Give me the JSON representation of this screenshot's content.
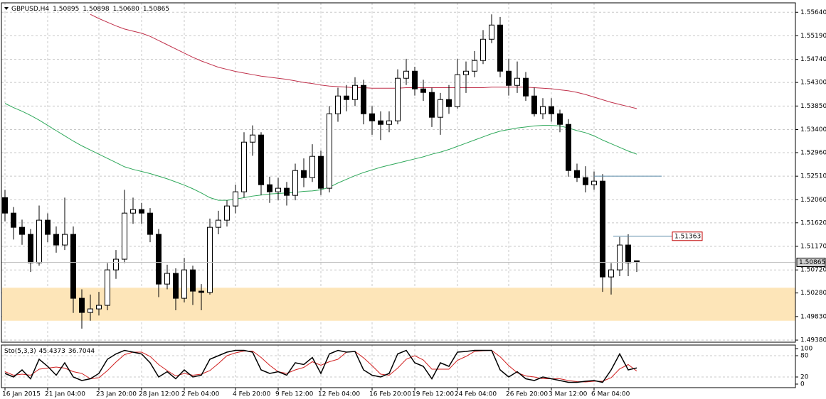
{
  "chart_data": {
    "type": "candlestick",
    "symbol": "GBPUSD,H4",
    "ohlc_labels": [
      "1.50895",
      "1.50898",
      "1.50680",
      "1.50865"
    ],
    "bull_color": "#ffffff",
    "bear_color": "#000000",
    "wick_color": "#000000",
    "grid": true,
    "ylim": [
      1.4934,
      1.5582
    ],
    "yticks": [
      {
        "value": 1.5564,
        "label": "1.55640"
      },
      {
        "value": 1.5519,
        "label": "1.55190"
      },
      {
        "value": 1.5474,
        "label": "1.54740"
      },
      {
        "value": 1.543,
        "label": "1.54300"
      },
      {
        "value": 1.5385,
        "label": "1.53850"
      },
      {
        "value": 1.534,
        "label": "1.53400"
      },
      {
        "value": 1.5296,
        "label": "1.52960"
      },
      {
        "value": 1.5251,
        "label": "1.52510"
      },
      {
        "value": 1.5206,
        "label": "1.52060"
      },
      {
        "value": 1.5162,
        "label": "1.51620"
      },
      {
        "value": 1.5117,
        "label": "1.51170"
      },
      {
        "value": 1.5072,
        "label": "1.50720"
      },
      {
        "value": 1.5028,
        "label": "1.50280"
      },
      {
        "value": 1.4983,
        "label": "1.49830"
      },
      {
        "value": 1.4938,
        "label": "1.49380"
      }
    ],
    "categories": [
      "16 Jan 2015",
      null,
      null,
      null,
      null,
      "21 Jan 04:00",
      null,
      null,
      null,
      null,
      null,
      "23 Jan 20:00",
      null,
      null,
      null,
      null,
      "28 Jan 12:00",
      null,
      null,
      null,
      null,
      "2 Feb 04:00",
      null,
      null,
      null,
      null,
      null,
      "4 Feb 20:00",
      null,
      null,
      null,
      null,
      "9 Feb 12:00",
      null,
      null,
      null,
      null,
      "12 Feb 04:00",
      null,
      null,
      null,
      null,
      null,
      "16 Feb 20:00",
      null,
      null,
      null,
      null,
      "19 Feb 12:00",
      null,
      null,
      null,
      null,
      "24 Feb 04:00",
      null,
      null,
      null,
      null,
      null,
      "26 Feb 20:00",
      null,
      null,
      null,
      null,
      "3 Mar 12:00",
      null,
      null,
      null,
      null,
      "6 Mar 04:00",
      null,
      null,
      null,
      null,
      null
    ],
    "candles": [
      [
        1.521,
        1.5225,
        1.5165,
        1.51805
      ],
      [
        1.51805,
        1.5192,
        1.513,
        1.51534
      ],
      [
        1.51534,
        1.5168,
        1.512,
        1.51399
      ],
      [
        1.51399,
        1.515,
        1.5068,
        1.50857
      ],
      [
        1.50857,
        1.5195,
        1.508,
        1.5167
      ],
      [
        1.5167,
        1.518,
        1.5125,
        1.51399
      ],
      [
        1.51399,
        1.5155,
        1.5105,
        1.51196
      ],
      [
        1.51196,
        1.521,
        1.511,
        1.51399
      ],
      [
        1.51399,
        1.5155,
        1.499,
        1.50179
      ],
      [
        1.50179,
        1.5035,
        1.496,
        1.49908
      ],
      [
        1.49908,
        1.5025,
        1.4975,
        1.49976
      ],
      [
        1.49976,
        1.503,
        1.4985,
        1.50044
      ],
      [
        1.50044,
        1.5085,
        1.4995,
        1.50721
      ],
      [
        1.50721,
        1.511,
        1.5055,
        1.50925
      ],
      [
        1.50925,
        1.5225,
        1.5085,
        1.51805
      ],
      [
        1.51805,
        1.521,
        1.516,
        1.51873
      ],
      [
        1.51873,
        1.52,
        1.516,
        1.51805
      ],
      [
        1.51805,
        1.519,
        1.5125,
        1.51399
      ],
      [
        1.51399,
        1.515,
        1.502,
        1.5045
      ],
      [
        1.5045,
        1.5082,
        1.5035,
        1.50654
      ],
      [
        1.50654,
        1.5075,
        1.4995,
        1.50179
      ],
      [
        1.50179,
        1.5095,
        1.501,
        1.50721
      ],
      [
        1.50721,
        1.508,
        1.5005,
        1.50315
      ],
      [
        1.50315,
        1.5045,
        1.4995,
        1.5029
      ],
      [
        1.5029,
        1.517,
        1.5025,
        1.51534
      ],
      [
        1.51534,
        1.5185,
        1.514,
        1.5167
      ],
      [
        1.5167,
        1.5205,
        1.5155,
        1.51941
      ],
      [
        1.51941,
        1.5235,
        1.518,
        1.52212
      ],
      [
        1.52212,
        1.5335,
        1.521,
        1.5316
      ],
      [
        1.5316,
        1.5348,
        1.529,
        1.53296
      ],
      [
        1.53296,
        1.5335,
        1.5215,
        1.52347
      ],
      [
        1.52347,
        1.525,
        1.52,
        1.52212
      ],
      [
        1.52212,
        1.5248,
        1.5205,
        1.5228
      ],
      [
        1.5228,
        1.524,
        1.5195,
        1.52144
      ],
      [
        1.52144,
        1.5275,
        1.5205,
        1.52618
      ],
      [
        1.52618,
        1.5285,
        1.523,
        1.52483
      ],
      [
        1.52483,
        1.5312,
        1.524,
        1.52889
      ],
      [
        1.52889,
        1.53,
        1.5215,
        1.5228
      ],
      [
        1.5228,
        1.5385,
        1.522,
        1.53702
      ],
      [
        1.53702,
        1.542,
        1.5355,
        1.54041
      ],
      [
        1.54041,
        1.5425,
        1.5375,
        1.53973
      ],
      [
        1.53973,
        1.544,
        1.5385,
        1.54244
      ],
      [
        1.54244,
        1.5435,
        1.535,
        1.53702
      ],
      [
        1.53702,
        1.5385,
        1.533,
        1.53567
      ],
      [
        1.53567,
        1.5375,
        1.532,
        1.53499
      ],
      [
        1.53499,
        1.5375,
        1.5335,
        1.53567
      ],
      [
        1.53567,
        1.5455,
        1.535,
        1.5438
      ],
      [
        1.5438,
        1.5475,
        1.5425,
        1.54515
      ],
      [
        1.54515,
        1.546,
        1.5405,
        1.54177
      ],
      [
        1.54177,
        1.5435,
        1.5395,
        1.54109
      ],
      [
        1.54109,
        1.542,
        1.5345,
        1.53635
      ],
      [
        1.53635,
        1.541,
        1.533,
        1.53973
      ],
      [
        1.53973,
        1.5425,
        1.537,
        1.53838
      ],
      [
        1.53838,
        1.5475,
        1.538,
        1.54448
      ],
      [
        1.54448,
        1.547,
        1.541,
        1.54515
      ],
      [
        1.54515,
        1.549,
        1.544,
        1.54719
      ],
      [
        1.54719,
        1.553,
        1.5465,
        1.55125
      ],
      [
        1.55125,
        1.556,
        1.5505,
        1.55396
      ],
      [
        1.55396,
        1.5555,
        1.544,
        1.54515
      ],
      [
        1.54515,
        1.5475,
        1.5405,
        1.54244
      ],
      [
        1.54244,
        1.547,
        1.541,
        1.5438
      ],
      [
        1.5438,
        1.545,
        1.5395,
        1.54041
      ],
      [
        1.54041,
        1.542,
        1.5365,
        1.53702
      ],
      [
        1.53702,
        1.54,
        1.536,
        1.53838
      ],
      [
        1.53838,
        1.54,
        1.5355,
        1.53702
      ],
      [
        1.53702,
        1.5378,
        1.5335,
        1.53499
      ],
      [
        1.53499,
        1.536,
        1.525,
        1.52618
      ],
      [
        1.52618,
        1.5275,
        1.524,
        1.52483
      ],
      [
        1.52483,
        1.527,
        1.522,
        1.52347
      ],
      [
        1.52347,
        1.526,
        1.5225,
        1.52415
      ],
      [
        1.52415,
        1.5255,
        1.503,
        1.50586
      ],
      [
        1.50586,
        1.5085,
        1.5025,
        1.50721
      ],
      [
        1.50721,
        1.5135,
        1.506,
        1.51196
      ],
      [
        1.51196,
        1.514,
        1.506,
        1.50857
      ],
      [
        1.50895,
        1.50898,
        1.5068,
        1.50865
      ]
    ],
    "moving_averages": [
      {
        "color": "#c0304a",
        "values": [
          null,
          null,
          null,
          null,
          null,
          null,
          null,
          null,
          null,
          null,
          1.556,
          1.5552,
          1.5545,
          1.5538,
          1.5532,
          1.5528,
          1.5524,
          1.5518,
          1.551,
          1.5502,
          1.5494,
          1.5486,
          1.5478,
          1.5471,
          1.5465,
          1.5459,
          1.5455,
          1.5451,
          1.5448,
          1.5445,
          1.5442,
          1.544,
          1.5438,
          1.5436,
          1.5433,
          1.543,
          1.5428,
          1.5425,
          1.5423,
          1.5422,
          1.5421,
          1.542,
          1.542,
          1.5419,
          1.5419,
          1.5419,
          1.5419,
          1.542,
          1.542,
          1.542,
          1.542,
          1.542,
          1.542,
          1.542,
          1.542,
          1.542,
          1.542,
          1.5421,
          1.5421,
          1.5421,
          1.5421,
          1.5421,
          1.542,
          1.5419,
          1.5418,
          1.5416,
          1.5414,
          1.5411,
          1.5407,
          1.5402,
          1.5397,
          1.5392,
          1.5388,
          1.5384,
          1.538
        ]
      },
      {
        "color": "#2ea85a",
        "values": [
          1.539,
          1.5382,
          1.5375,
          1.5367,
          1.5358,
          1.5348,
          1.5338,
          1.5328,
          1.5318,
          1.5309,
          1.5301,
          1.5293,
          1.5285,
          1.5277,
          1.5269,
          1.5264,
          1.526,
          1.5256,
          1.5251,
          1.5246,
          1.524,
          1.5234,
          1.5227,
          1.5219,
          1.521,
          1.5205,
          1.5205,
          1.5207,
          1.521,
          1.5213,
          1.5215,
          1.5217,
          1.5218,
          1.5219,
          1.522,
          1.5222,
          1.5223,
          1.5225,
          1.523,
          1.5238,
          1.5245,
          1.5252,
          1.5258,
          1.5263,
          1.5268,
          1.5272,
          1.5276,
          1.528,
          1.5284,
          1.5288,
          1.5293,
          1.5297,
          1.5302,
          1.5308,
          1.5314,
          1.532,
          1.5326,
          1.5332,
          1.5337,
          1.534,
          1.5343,
          1.5345,
          1.5347,
          1.5348,
          1.5348,
          1.5347,
          1.5343,
          1.5338,
          1.5334,
          1.5328,
          1.532,
          1.5313,
          1.5306,
          1.5299,
          1.5293
        ]
      }
    ],
    "zone": {
      "top": 1.5038,
      "bottom": 1.4975,
      "color": "#fde5b8"
    },
    "levels": [
      {
        "value": 1.51363,
        "label": "1.51363",
        "color": "#c00000"
      },
      {
        "value": 1.5251,
        "color": "#5a8aa8"
      }
    ],
    "stochastic": {
      "label": "Sto(5,3,3)",
      "ylim": [
        0,
        100
      ],
      "yticks": [
        100,
        80,
        20,
        0
      ],
      "main": {
        "color": "#000000",
        "values": [
          30,
          20,
          40,
          15,
          70,
          50,
          25,
          60,
          20,
          10,
          15,
          30,
          70,
          85,
          95,
          90,
          85,
          60,
          20,
          35,
          15,
          40,
          20,
          25,
          70,
          80,
          90,
          95,
          95,
          90,
          40,
          30,
          35,
          25,
          60,
          55,
          75,
          30,
          85,
          95,
          90,
          92,
          40,
          25,
          20,
          30,
          85,
          95,
          60,
          50,
          15,
          60,
          50,
          90,
          92,
          95,
          95,
          95,
          40,
          20,
          35,
          15,
          10,
          20,
          15,
          10,
          5,
          5,
          8,
          10,
          5,
          40,
          85,
          40,
          45.4373
        ]
      },
      "signal": {
        "color": "#d02020",
        "values": [
          35,
          25,
          28,
          25,
          42,
          45,
          48,
          45,
          35,
          30,
          15,
          18,
          38,
          62,
          83,
          90,
          90,
          78,
          55,
          38,
          23,
          30,
          25,
          28,
          38,
          58,
          80,
          88,
          93,
          93,
          75,
          53,
          35,
          30,
          40,
          47,
          63,
          53,
          63,
          70,
          90,
          92,
          74,
          52,
          28,
          25,
          45,
          70,
          80,
          68,
          42,
          42,
          42,
          67,
          78,
          92,
          94,
          95,
          77,
          52,
          32,
          23,
          20,
          15,
          15,
          15,
          10,
          7,
          6,
          8,
          8,
          18,
          43,
          55,
          36.7044
        ]
      }
    }
  }
}
